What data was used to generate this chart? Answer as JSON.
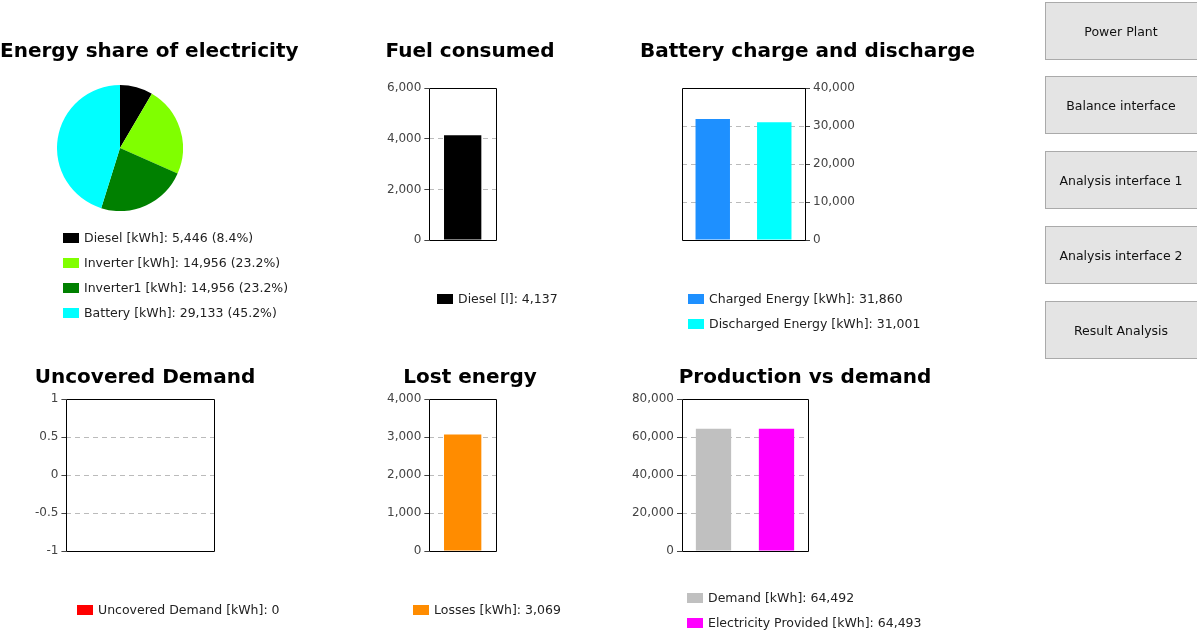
{
  "chart_data": [
    {
      "type": "pie",
      "title": "Energy share of electricity",
      "categories": [
        "Diesel [kWh]",
        "Inverter [kWh]",
        "Inverter1 [kWh]",
        "Battery [kWh]"
      ],
      "values": [
        5446,
        14956,
        14956,
        29133
      ],
      "colors": [
        "#000000",
        "#80ff00",
        "#008000",
        "#00ffff"
      ],
      "value_labels": [
        "5,446 (8.4%)",
        "14,956 (23.2%)",
        "14,956 (23.2%)",
        "29,133 (45.2%)"
      ],
      "legend": "bottom"
    },
    {
      "type": "bar",
      "title": "Fuel consumed",
      "categories": [
        null
      ],
      "series": [
        {
          "name": "Diesel [l]: 4,137",
          "color": "#000000",
          "values": [
            4137
          ]
        }
      ],
      "ylim": [
        0,
        6000
      ],
      "yticks": [
        0,
        {
          "value": 2000,
          "label": "2,000"
        },
        {
          "value": 4000,
          "label": "4,000"
        },
        {
          "value": 6000,
          "label": "6,000"
        }
      ],
      "grid": "y",
      "legend": "bottom"
    },
    {
      "type": "bar",
      "title": "Battery charge and discharge",
      "categories": [
        null,
        null
      ],
      "series": [
        {
          "name": "Charged Energy [kWh]: 31,860",
          "color": "#1e90ff",
          "axis": "y2",
          "values": [
            31860,
            null
          ]
        },
        {
          "name": "Discharged Energy [kWh]: 31,001",
          "color": "#00ffff",
          "axis": "y2",
          "values": [
            null,
            31001
          ]
        }
      ],
      "y2lim": [
        0,
        40000
      ],
      "y2ticks": [
        0,
        {
          "value": 10000,
          "label": "10,000"
        },
        {
          "value": 20000,
          "label": "20,000"
        },
        {
          "value": 30000,
          "label": "30,000"
        },
        {
          "value": 40000,
          "label": "40,000"
        }
      ],
      "grid": "y",
      "legend": "bottom"
    },
    {
      "type": "bar",
      "title": "Uncovered Demand",
      "categories": [
        null
      ],
      "series": [
        {
          "name": "Uncovered Demand [kWh]: 0",
          "color": "#ff0000",
          "values": [
            0
          ]
        }
      ],
      "ylim": [
        -1,
        1
      ],
      "yticks": [
        -1,
        -0.5,
        0,
        0.5,
        1
      ],
      "grid": "y",
      "legend": "bottom"
    },
    {
      "type": "bar",
      "title": "Lost energy",
      "categories": [
        null
      ],
      "series": [
        {
          "name": "Losses [kWh]: 3,069",
          "color": "#ff8c00",
          "values": [
            3069
          ]
        }
      ],
      "ylim": [
        0,
        4000
      ],
      "yticks": [
        0,
        {
          "value": 1000,
          "label": "1,000"
        },
        {
          "value": 2000,
          "label": "2,000"
        },
        {
          "value": 3000,
          "label": "3,000"
        },
        {
          "value": 4000,
          "label": "4,000"
        }
      ],
      "grid": "y",
      "legend": "bottom"
    },
    {
      "type": "bar",
      "title": "Production vs demand",
      "categories": [
        null,
        null
      ],
      "series": [
        {
          "name": "Demand [kWh]: 64,492",
          "color": "#c0c0c0",
          "values": [
            64492,
            null
          ]
        },
        {
          "name": "Electricity Provided [kWh]: 64,493",
          "color": "#ff00ff",
          "values": [
            null,
            64493
          ]
        }
      ],
      "ylim": [
        0,
        80000
      ],
      "yticks": [
        0,
        {
          "value": 20000,
          "label": "20,000"
        },
        {
          "value": 40000,
          "label": "40,000"
        },
        {
          "value": 60000,
          "label": "60,000"
        },
        {
          "value": 80000,
          "label": "80,000"
        }
      ],
      "grid": "y",
      "legend": "bottom"
    },
    {
      "type": "other",
      "annotations": [
        "Power Plant",
        "Balance interface",
        "Analysis interface 1",
        "Analysis interface 2",
        "Result Analysis"
      ]
    }
  ]
}
